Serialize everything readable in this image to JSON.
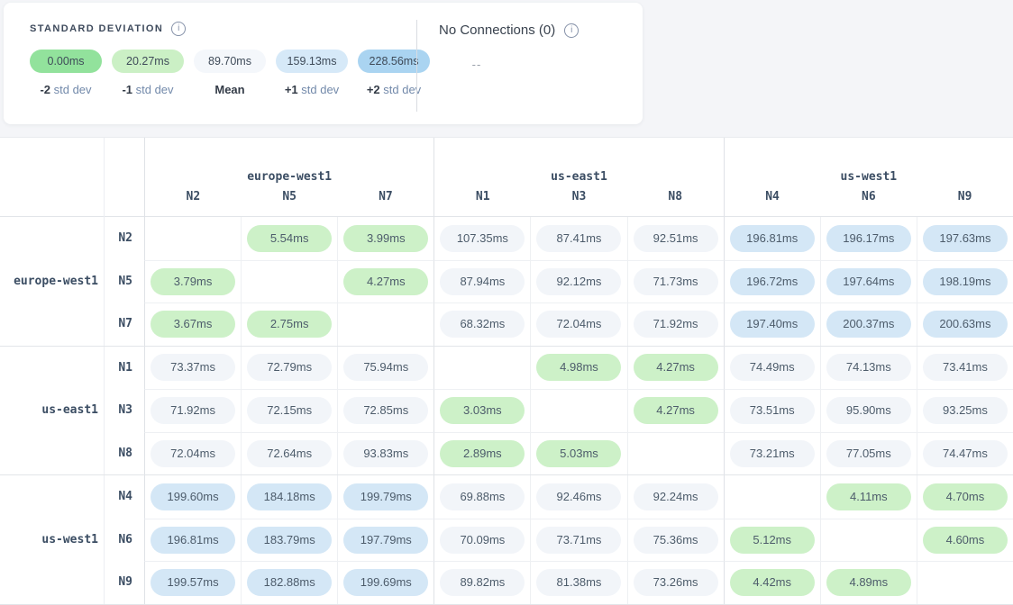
{
  "legend": {
    "title": "STANDARD DEVIATION",
    "info_icon": "i",
    "items": [
      {
        "value": "0.00ms",
        "label_bold": "-2",
        "label_rest": "std dev",
        "color": "#92e29c"
      },
      {
        "value": "20.27ms",
        "label_bold": "-1",
        "label_rest": "std dev",
        "color": "#cbf0c5"
      },
      {
        "value": "89.70ms",
        "label_bold": "Mean",
        "label_rest": "",
        "color": "#f4f7fb"
      },
      {
        "value": "159.13ms",
        "label_bold": "+1",
        "label_rest": "std dev",
        "color": "#d6e9f8"
      },
      {
        "value": "228.56ms",
        "label_bold": "+2",
        "label_rest": "std dev",
        "color": "#aad4f1"
      }
    ],
    "no_connections": {
      "label": "No Connections (0)",
      "info_icon": "i",
      "pill_text": "--",
      "pill_color": "#fdebcd"
    }
  },
  "matrix": {
    "cell_colors": {
      "green": "#cdf1c8",
      "gray": "#f2f5f9",
      "blue": "#d4e7f6"
    },
    "col_groups": [
      {
        "region": "europe-west1",
        "nodes": [
          "N2",
          "N5",
          "N7"
        ]
      },
      {
        "region": "us-east1",
        "nodes": [
          "N1",
          "N3",
          "N8"
        ]
      },
      {
        "region": "us-west1",
        "nodes": [
          "N4",
          "N6",
          "N9"
        ]
      }
    ],
    "row_groups": [
      {
        "region": "europe-west1",
        "rows": [
          {
            "node": "N2",
            "cells": [
              null,
              {
                "v": "5.54ms",
                "c": "green"
              },
              {
                "v": "3.99ms",
                "c": "green"
              },
              {
                "v": "107.35ms",
                "c": "gray"
              },
              {
                "v": "87.41ms",
                "c": "gray"
              },
              {
                "v": "92.51ms",
                "c": "gray"
              },
              {
                "v": "196.81ms",
                "c": "blue"
              },
              {
                "v": "196.17ms",
                "c": "blue"
              },
              {
                "v": "197.63ms",
                "c": "blue"
              }
            ]
          },
          {
            "node": "N5",
            "cells": [
              {
                "v": "3.79ms",
                "c": "green"
              },
              null,
              {
                "v": "4.27ms",
                "c": "green"
              },
              {
                "v": "87.94ms",
                "c": "gray"
              },
              {
                "v": "92.12ms",
                "c": "gray"
              },
              {
                "v": "71.73ms",
                "c": "gray"
              },
              {
                "v": "196.72ms",
                "c": "blue"
              },
              {
                "v": "197.64ms",
                "c": "blue"
              },
              {
                "v": "198.19ms",
                "c": "blue"
              }
            ]
          },
          {
            "node": "N7",
            "cells": [
              {
                "v": "3.67ms",
                "c": "green"
              },
              {
                "v": "2.75ms",
                "c": "green"
              },
              null,
              {
                "v": "68.32ms",
                "c": "gray"
              },
              {
                "v": "72.04ms",
                "c": "gray"
              },
              {
                "v": "71.92ms",
                "c": "gray"
              },
              {
                "v": "197.40ms",
                "c": "blue"
              },
              {
                "v": "200.37ms",
                "c": "blue"
              },
              {
                "v": "200.63ms",
                "c": "blue"
              }
            ]
          }
        ]
      },
      {
        "region": "us-east1",
        "rows": [
          {
            "node": "N1",
            "cells": [
              {
                "v": "73.37ms",
                "c": "gray"
              },
              {
                "v": "72.79ms",
                "c": "gray"
              },
              {
                "v": "75.94ms",
                "c": "gray"
              },
              null,
              {
                "v": "4.98ms",
                "c": "green"
              },
              {
                "v": "4.27ms",
                "c": "green"
              },
              {
                "v": "74.49ms",
                "c": "gray"
              },
              {
                "v": "74.13ms",
                "c": "gray"
              },
              {
                "v": "73.41ms",
                "c": "gray"
              }
            ]
          },
          {
            "node": "N3",
            "cells": [
              {
                "v": "71.92ms",
                "c": "gray"
              },
              {
                "v": "72.15ms",
                "c": "gray"
              },
              {
                "v": "72.85ms",
                "c": "gray"
              },
              {
                "v": "3.03ms",
                "c": "green"
              },
              null,
              {
                "v": "4.27ms",
                "c": "green"
              },
              {
                "v": "73.51ms",
                "c": "gray"
              },
              {
                "v": "95.90ms",
                "c": "gray"
              },
              {
                "v": "93.25ms",
                "c": "gray"
              }
            ]
          },
          {
            "node": "N8",
            "cells": [
              {
                "v": "72.04ms",
                "c": "gray"
              },
              {
                "v": "72.64ms",
                "c": "gray"
              },
              {
                "v": "93.83ms",
                "c": "gray"
              },
              {
                "v": "2.89ms",
                "c": "green"
              },
              {
                "v": "5.03ms",
                "c": "green"
              },
              null,
              {
                "v": "73.21ms",
                "c": "gray"
              },
              {
                "v": "77.05ms",
                "c": "gray"
              },
              {
                "v": "74.47ms",
                "c": "gray"
              }
            ]
          }
        ]
      },
      {
        "region": "us-west1",
        "rows": [
          {
            "node": "N4",
            "cells": [
              {
                "v": "199.60ms",
                "c": "blue"
              },
              {
                "v": "184.18ms",
                "c": "blue"
              },
              {
                "v": "199.79ms",
                "c": "blue"
              },
              {
                "v": "69.88ms",
                "c": "gray"
              },
              {
                "v": "92.46ms",
                "c": "gray"
              },
              {
                "v": "92.24ms",
                "c": "gray"
              },
              null,
              {
                "v": "4.11ms",
                "c": "green"
              },
              {
                "v": "4.70ms",
                "c": "green"
              }
            ]
          },
          {
            "node": "N6",
            "cells": [
              {
                "v": "196.81ms",
                "c": "blue"
              },
              {
                "v": "183.79ms",
                "c": "blue"
              },
              {
                "v": "197.79ms",
                "c": "blue"
              },
              {
                "v": "70.09ms",
                "c": "gray"
              },
              {
                "v": "73.71ms",
                "c": "gray"
              },
              {
                "v": "75.36ms",
                "c": "gray"
              },
              {
                "v": "5.12ms",
                "c": "green"
              },
              null,
              {
                "v": "4.60ms",
                "c": "green"
              }
            ]
          },
          {
            "node": "N9",
            "cells": [
              {
                "v": "199.57ms",
                "c": "blue"
              },
              {
                "v": "182.88ms",
                "c": "blue"
              },
              {
                "v": "199.69ms",
                "c": "blue"
              },
              {
                "v": "89.82ms",
                "c": "gray"
              },
              {
                "v": "81.38ms",
                "c": "gray"
              },
              {
                "v": "73.26ms",
                "c": "gray"
              },
              {
                "v": "4.42ms",
                "c": "green"
              },
              {
                "v": "4.89ms",
                "c": "green"
              },
              null
            ]
          }
        ]
      }
    ]
  }
}
